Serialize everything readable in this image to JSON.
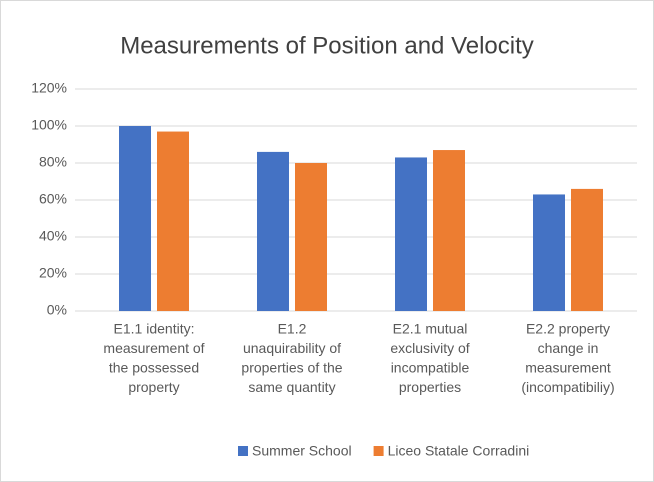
{
  "chart_data": {
    "type": "bar",
    "title": "Measurements of Position and Velocity",
    "categories": [
      [
        "E1.1 identity:",
        "measurement of",
        "the possessed",
        "property"
      ],
      [
        "E1.2",
        "unaquirability of",
        "properties of the",
        "same quantity"
      ],
      [
        "E2.1 mutual",
        "exclusivity of",
        "incompatible",
        "properties"
      ],
      [
        "E2.2 property",
        "change in",
        "measurement",
        "(incompatibiliy)"
      ]
    ],
    "series": [
      {
        "name": "Summer School",
        "color": "#4472c4",
        "values": [
          100,
          86,
          83,
          63
        ]
      },
      {
        "name": "Liceo Statale Corradini",
        "color": "#ed7d31",
        "values": [
          97,
          80,
          87,
          66
        ]
      }
    ],
    "ylim": [
      0,
      120
    ],
    "yticks": [
      {
        "value": 0,
        "label": "0%"
      },
      {
        "value": 20,
        "label": "20%"
      },
      {
        "value": 40,
        "label": "40%"
      },
      {
        "value": 60,
        "label": "60%"
      },
      {
        "value": 80,
        "label": "80%"
      },
      {
        "value": 100,
        "label": "100%"
      },
      {
        "value": 120,
        "label": "120%"
      }
    ],
    "grid": true,
    "legend": "bottom"
  }
}
